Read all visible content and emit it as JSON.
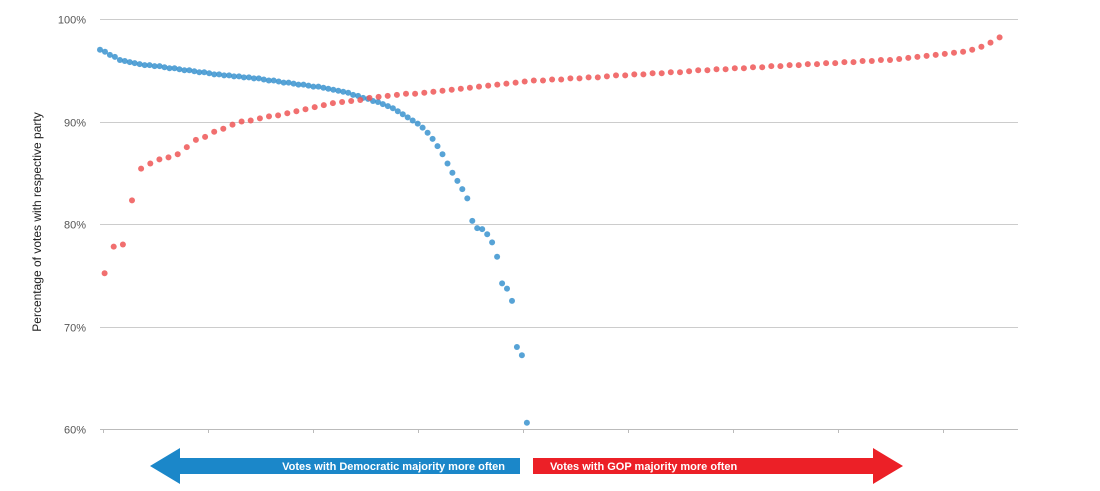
{
  "chart_data": {
    "type": "scatter",
    "ylabel": "Percentage of votes with respective party",
    "ylim": [
      60,
      100
    ],
    "yticks": [
      "60%",
      "70%",
      "80%",
      "90%",
      "100%"
    ],
    "grid": true,
    "annotations": {
      "left_arrow": "Votes with Democratic majority more often",
      "right_arrow": "Votes with GOP majority more often"
    },
    "series": [
      {
        "color": "#3a93cf",
        "values": [
          97.0,
          96.8,
          96.5,
          96.3,
          96.0,
          95.9,
          95.8,
          95.7,
          95.6,
          95.5,
          95.5,
          95.4,
          95.4,
          95.3,
          95.2,
          95.2,
          95.1,
          95.0,
          95.0,
          94.9,
          94.8,
          94.8,
          94.7,
          94.6,
          94.6,
          94.5,
          94.5,
          94.4,
          94.4,
          94.3,
          94.3,
          94.2,
          94.2,
          94.1,
          94.0,
          94.0,
          93.9,
          93.8,
          93.8,
          93.7,
          93.6,
          93.6,
          93.5,
          93.4,
          93.4,
          93.3,
          93.2,
          93.1,
          93.0,
          92.9,
          92.8,
          92.6,
          92.5,
          92.3,
          92.2,
          92.0,
          91.9,
          91.7,
          91.5,
          91.3,
          91.0,
          90.7,
          90.4,
          90.1,
          89.8,
          89.4,
          88.9,
          88.3,
          87.6,
          86.8,
          85.9,
          85.0,
          84.2,
          83.4,
          82.5,
          80.3,
          79.6,
          79.5,
          79.0,
          78.2,
          76.8,
          74.2,
          73.7,
          72.5,
          68.0,
          67.2,
          60.6
        ],
        "x_start": 0,
        "x_end": 0.465
      },
      {
        "color": "#ee5656",
        "values": [
          75.2,
          77.8,
          78.0,
          82.3,
          85.4,
          85.9,
          86.3,
          86.5,
          86.8,
          87.5,
          88.2,
          88.5,
          89.0,
          89.3,
          89.7,
          90.0,
          90.1,
          90.3,
          90.5,
          90.6,
          90.8,
          91.0,
          91.2,
          91.4,
          91.6,
          91.8,
          91.9,
          92.0,
          92.1,
          92.3,
          92.4,
          92.5,
          92.6,
          92.7,
          92.7,
          92.8,
          92.9,
          93.0,
          93.1,
          93.2,
          93.3,
          93.4,
          93.5,
          93.6,
          93.7,
          93.8,
          93.9,
          94.0,
          94.0,
          94.1,
          94.1,
          94.2,
          94.2,
          94.3,
          94.3,
          94.4,
          94.5,
          94.5,
          94.6,
          94.6,
          94.7,
          94.7,
          94.8,
          94.8,
          94.9,
          95.0,
          95.0,
          95.1,
          95.1,
          95.2,
          95.2,
          95.3,
          95.3,
          95.4,
          95.4,
          95.5,
          95.5,
          95.6,
          95.6,
          95.7,
          95.7,
          95.8,
          95.8,
          95.9,
          95.9,
          96.0,
          96.0,
          96.1,
          96.2,
          96.3,
          96.4,
          96.5,
          96.6,
          96.7,
          96.8,
          97.0,
          97.3,
          97.7,
          98.2
        ],
        "x_start": 0.005,
        "x_end": 0.98
      }
    ]
  }
}
